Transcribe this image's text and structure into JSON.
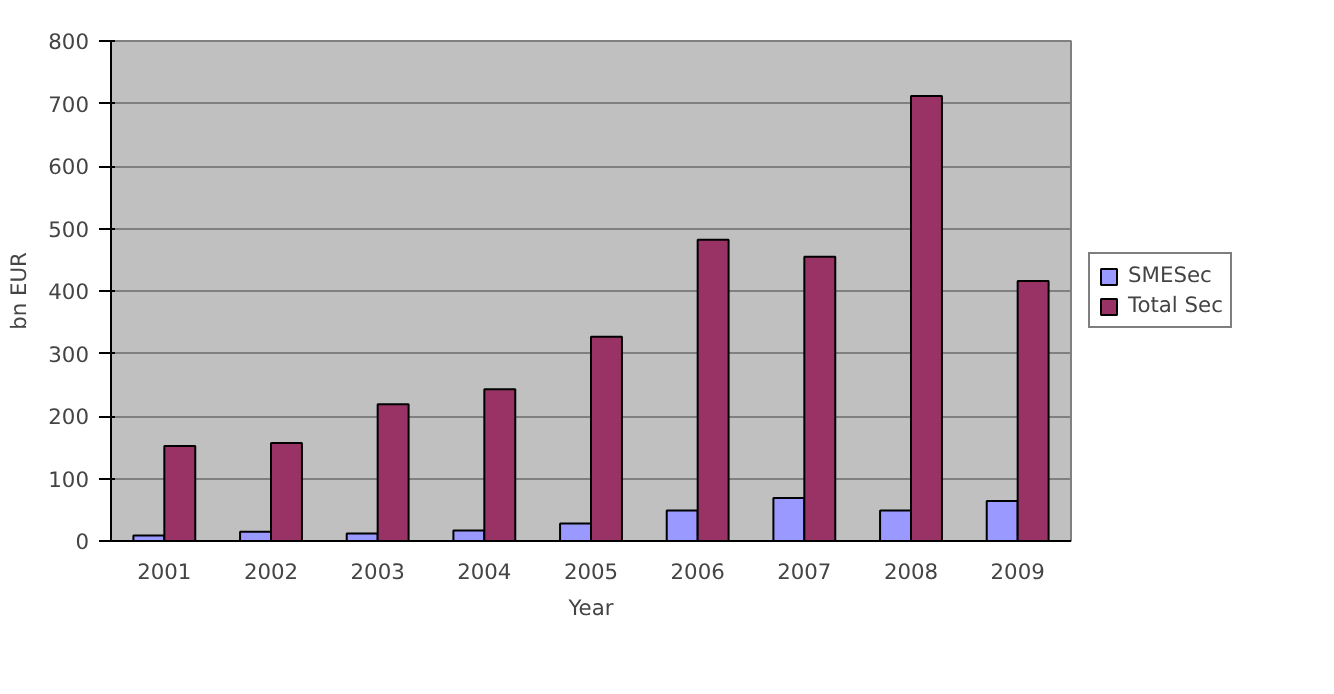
{
  "chart_data": {
    "type": "bar",
    "xlabel": "Year",
    "ylabel": "bn EUR",
    "categories": [
      "2001",
      "2002",
      "2003",
      "2004",
      "2005",
      "2006",
      "2007",
      "2008",
      "2009"
    ],
    "series": [
      {
        "name": "SMESec",
        "color": "#9999ff",
        "values": [
          9,
          15,
          12,
          17,
          28,
          49,
          69,
          49,
          64
        ]
      },
      {
        "name": "Total Sec",
        "color": "#993366",
        "values": [
          152,
          157,
          219,
          243,
          327,
          482,
          455,
          712,
          416
        ]
      }
    ],
    "ylim": [
      0,
      800
    ],
    "yticks": [
      0,
      100,
      200,
      300,
      400,
      500,
      600,
      700,
      800
    ],
    "grid": "y",
    "legend": "right"
  }
}
